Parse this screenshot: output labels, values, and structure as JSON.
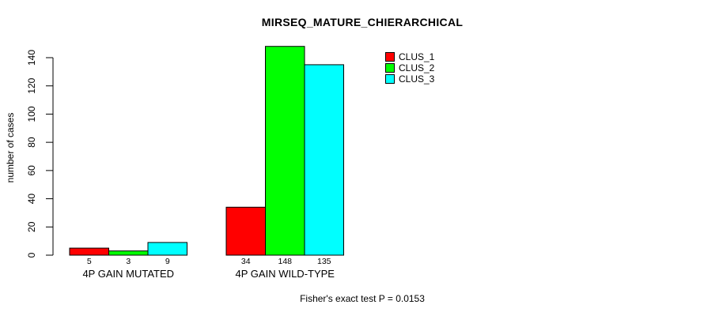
{
  "chart_data": {
    "type": "bar",
    "title": "MIRSEQ_MATURE_CHIERARCHICAL",
    "ylabel": "number of cases",
    "xlabel": "",
    "categories": [
      "4P GAIN MUTATED",
      "4P GAIN WILD-TYPE"
    ],
    "series": [
      {
        "name": "CLUS_1",
        "color": "#FF0000",
        "values": [
          5,
          34
        ]
      },
      {
        "name": "CLUS_2",
        "color": "#00FF00",
        "values": [
          3,
          148
        ]
      },
      {
        "name": "CLUS_3",
        "color": "#00FFFF",
        "values": [
          9,
          135
        ]
      }
    ],
    "bar_value_labels": [
      [
        5,
        3,
        9
      ],
      [
        34,
        148,
        135
      ]
    ],
    "ylim": [
      0,
      140
    ],
    "yticks": [
      0,
      20,
      40,
      60,
      80,
      100,
      120,
      140
    ],
    "grid": false,
    "show_bar_values": true,
    "legend_position": "top-right",
    "bar_border_color": "#000000",
    "axis_color": "#000000",
    "caption": "Fisher's exact test P = 0.0153"
  }
}
